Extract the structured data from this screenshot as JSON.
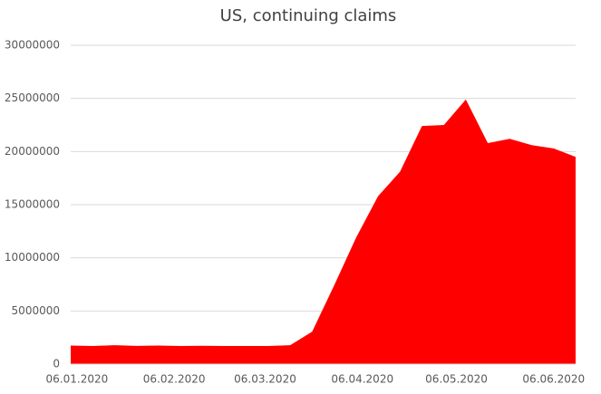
{
  "chart_data": {
    "type": "area",
    "title": "US, continuing claims",
    "x": [
      "04.01.2020",
      "11.01.2020",
      "18.01.2020",
      "25.01.2020",
      "01.02.2020",
      "08.02.2020",
      "15.02.2020",
      "22.02.2020",
      "29.02.2020",
      "07.03.2020",
      "14.03.2020",
      "21.03.2020",
      "28.03.2020",
      "04.04.2020",
      "11.04.2020",
      "18.04.2020",
      "25.04.2020",
      "02.05.2020",
      "09.05.2020",
      "16.05.2020",
      "23.05.2020",
      "30.05.2020",
      "06.06.2020",
      "13.06.2020"
    ],
    "values": [
      1750000,
      1700000,
      1780000,
      1720000,
      1750000,
      1700000,
      1730000,
      1700000,
      1700000,
      1700000,
      1780000,
      3060000,
      7400000,
      11900000,
      15800000,
      18100000,
      22400000,
      22500000,
      24900000,
      20800000,
      21200000,
      20600000,
      20300000,
      19500000
    ],
    "color": "#ff0000",
    "xlim": [
      "04.01.2020",
      "13.06.2020"
    ],
    "xticks": [
      "06.01.2020",
      "06.02.2020",
      "06.03.2020",
      "06.04.2020",
      "06.05.2020",
      "06.06.2020"
    ],
    "ylim": [
      0,
      30000000
    ],
    "yticks": [
      0,
      5000000,
      10000000,
      15000000,
      20000000,
      25000000,
      30000000
    ],
    "grid": true
  }
}
